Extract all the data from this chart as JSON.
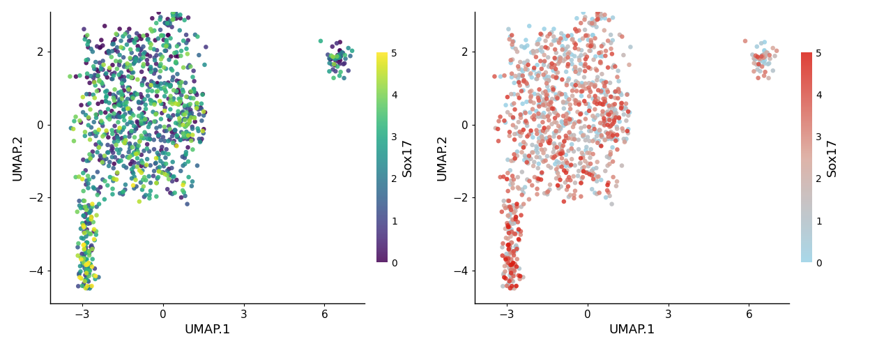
{
  "xlabel": "UMAP.1",
  "ylabel": "UMAP.2",
  "xlim": [
    -4.2,
    7.5
  ],
  "ylim": [
    -4.9,
    3.1
  ],
  "xticks": [
    -3,
    0,
    3,
    6
  ],
  "yticks": [
    -4,
    -2,
    0,
    2
  ],
  "cbar_label": "Sox17",
  "cbar_ticks": [
    0,
    1,
    2,
    3,
    4,
    5
  ],
  "point_size": 22,
  "alpha": 0.85,
  "seed": 7,
  "background_color": "#ffffff",
  "colorbar_label_fontsize": 13,
  "axis_label_fontsize": 13,
  "tick_fontsize": 11
}
